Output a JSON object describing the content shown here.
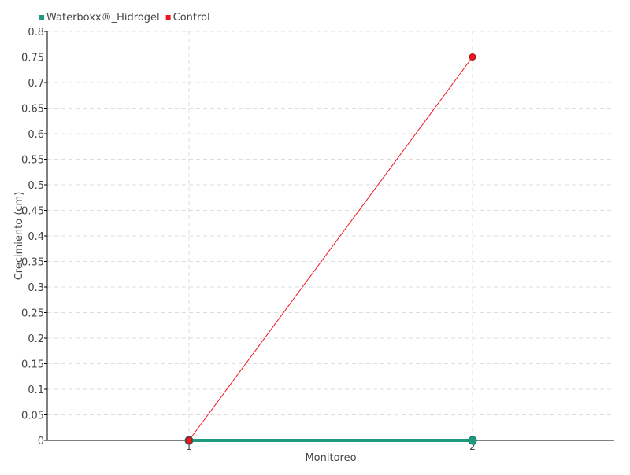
{
  "chart_data": {
    "type": "line",
    "title": "",
    "xlabel": "Monitoreo",
    "ylabel": "Crecimiento (cm)",
    "categories": [
      "1",
      "2"
    ],
    "ylim": [
      0,
      0.8
    ],
    "yticks": [
      "0",
      "0.05",
      "0.1",
      "0.15",
      "0.2",
      "0.25",
      "0.3",
      "0.35",
      "0.4",
      "0.45",
      "0.5",
      "0.55",
      "0.6",
      "0.65",
      "0.7",
      "0.75",
      "0.8"
    ],
    "grid": true,
    "legend_position": "top-left",
    "series": [
      {
        "name": "Waterboxx®_Hidrogel",
        "values": [
          0,
          0
        ],
        "color": "#1f9a7e"
      },
      {
        "name": "Control",
        "values": [
          0,
          0.75
        ],
        "color": "#f0141e"
      }
    ]
  }
}
